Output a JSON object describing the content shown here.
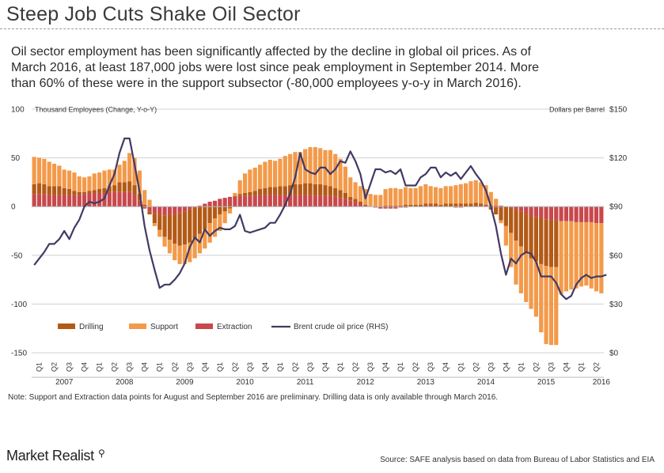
{
  "header": {
    "title": "Steep Job Cuts Shake Oil Sector",
    "subtitle_lines": [
      "Oil sector employment has been significantly affected by the decline in global oil prices. As of",
      "March 2016, at least 187,000 jobs were lost since peak employment in September 2014. More",
      "than 60% of these were in the support subsector (-80,000 employees y-o-y in March 2016)."
    ]
  },
  "footer": {
    "note": "Note: Support and Extraction data points for August and September 2016 are preliminary. Drilling data is only available through March 2016.",
    "brand": "Market Realist",
    "brand_icon": "magnifier-q-icon",
    "source": "Source: SAFE analysis based on data from Bureau of Labor Statistics and EIA"
  },
  "chart_data": {
    "type": "bar",
    "stacked": true,
    "ylabel": "Thousand Employees (Change, Y-o-Y)",
    "y2label": "Dollars per Barrel",
    "ylim": [
      -150,
      100
    ],
    "y2lim": [
      0,
      150
    ],
    "yticks": [
      100,
      50,
      0,
      -50,
      -100,
      -150
    ],
    "y2ticks": [
      "$150",
      "$120",
      "$90",
      "$60",
      "$30",
      "$0"
    ],
    "quarter_labels": [
      "Q1",
      "Q2",
      "Q3",
      "Q4"
    ],
    "years": [
      "2007",
      "2008",
      "2009",
      "2010",
      "2011",
      "2012",
      "2013",
      "2014",
      "2015",
      "2016"
    ],
    "grid": true,
    "legend_position": "bottom-left",
    "colors": {
      "drilling": "#b35a16",
      "support": "#f39a4a",
      "extraction": "#c8484c",
      "brent": "#433a63",
      "grid": "#d0d0d0"
    },
    "series": [
      {
        "name": "Drilling",
        "type": "bar",
        "values": [
          10,
          11,
          10,
          9,
          9,
          9,
          7,
          6,
          4,
          3,
          2,
          2,
          3,
          4,
          5,
          6,
          7,
          10,
          10,
          11,
          10,
          7,
          2,
          -3,
          -10,
          -16,
          -22,
          -26,
          -30,
          -33,
          -34,
          -34,
          -32,
          -28,
          -23,
          -17,
          -12,
          -8,
          -5,
          -2,
          1,
          2,
          3,
          4,
          5,
          6,
          7,
          8,
          8,
          9,
          9,
          10,
          11,
          11,
          12,
          12,
          12,
          12,
          11,
          10,
          9,
          8,
          6,
          4,
          3,
          2,
          1,
          0,
          0,
          0,
          1,
          1,
          1,
          1,
          2,
          2,
          2,
          2,
          2,
          2,
          2,
          2,
          3,
          3,
          3,
          3,
          3,
          3,
          3,
          2,
          1,
          -3,
          -8,
          -14,
          -20,
          -26,
          -32,
          -36,
          -40,
          -43,
          -45,
          -47,
          -48,
          -48,
          -48
        ]
      },
      {
        "name": "Support",
        "type": "bar",
        "values": [
          28,
          26,
          26,
          25,
          23,
          21,
          19,
          19,
          19,
          16,
          15,
          15,
          17,
          17,
          18,
          17,
          16,
          18,
          22,
          29,
          28,
          24,
          15,
          7,
          -3,
          -7,
          -10,
          -14,
          -17,
          -19,
          -20,
          -20,
          -20,
          -20,
          -20,
          -20,
          -19,
          -17,
          -12,
          -5,
          3,
          14,
          20,
          23,
          24,
          25,
          27,
          28,
          27,
          28,
          31,
          32,
          33,
          33,
          35,
          37,
          38,
          37,
          36,
          37,
          35,
          32,
          27,
          20,
          17,
          16,
          16,
          13,
          12,
          12,
          17,
          18,
          18,
          17,
          18,
          17,
          17,
          19,
          20,
          18,
          17,
          17,
          18,
          18,
          19,
          20,
          21,
          23,
          23,
          22,
          20,
          14,
          7,
          -3,
          -20,
          -35,
          -45,
          -48,
          -50,
          -52,
          -57,
          -70,
          -80,
          -80,
          -80,
          -75,
          -72,
          -70,
          -68,
          -66,
          -65,
          -68,
          -70,
          -72
        ]
      },
      {
        "name": "Extraction",
        "type": "bar",
        "values": [
          13,
          13,
          13,
          12,
          12,
          12,
          12,
          12,
          12,
          12,
          13,
          14,
          14,
          14,
          14,
          15,
          15,
          15,
          15,
          15,
          12,
          6,
          -2,
          -5,
          -7,
          -8,
          -9,
          -8,
          -8,
          -7,
          -5,
          -3,
          -1,
          1,
          3,
          5,
          6,
          8,
          9,
          10,
          10,
          11,
          11,
          11,
          11,
          12,
          12,
          12,
          12,
          12,
          12,
          12,
          12,
          12,
          12,
          12,
          11,
          11,
          11,
          11,
          10,
          9,
          8,
          6,
          5,
          3,
          1,
          0,
          -1,
          -2,
          -2,
          -2,
          -2,
          -1,
          -1,
          0,
          0,
          0,
          1,
          1,
          1,
          0,
          0,
          0,
          -1,
          -1,
          0,
          0,
          1,
          1,
          1,
          1,
          1,
          1,
          0,
          -1,
          -3,
          -5,
          -8,
          -10,
          -11,
          -12,
          -13,
          -14,
          -14,
          -15,
          -15,
          -15,
          -16,
          -16,
          -16,
          -16,
          -17,
          -17,
          -18,
          -18,
          -18
        ]
      },
      {
        "name": "Brent crude oil price (RHS)",
        "type": "line",
        "axis": "right",
        "values": [
          54,
          58,
          62,
          67,
          67,
          70,
          75,
          70,
          77,
          82,
          90,
          93,
          92,
          93,
          95,
          103,
          110,
          123,
          132,
          132,
          116,
          99,
          78,
          63,
          51,
          40,
          42,
          42,
          45,
          49,
          55,
          65,
          71,
          68,
          76,
          72,
          75,
          77,
          76,
          76,
          78,
          85,
          75,
          74,
          75,
          76,
          77,
          80,
          80,
          85,
          91,
          98,
          108,
          123,
          113,
          111,
          110,
          114,
          114,
          110,
          113,
          118,
          117,
          124,
          118,
          110,
          95,
          104,
          113,
          113,
          111,
          112,
          110,
          113,
          103,
          103,
          103,
          108,
          110,
          114,
          114,
          108,
          111,
          109,
          111,
          107,
          111,
          115,
          110,
          106,
          100,
          90,
          78,
          61,
          48,
          58,
          55,
          60,
          62,
          61,
          56,
          47,
          47,
          47,
          43,
          36,
          33,
          35,
          42,
          46,
          48,
          46,
          47,
          47,
          48
        ]
      }
    ]
  }
}
